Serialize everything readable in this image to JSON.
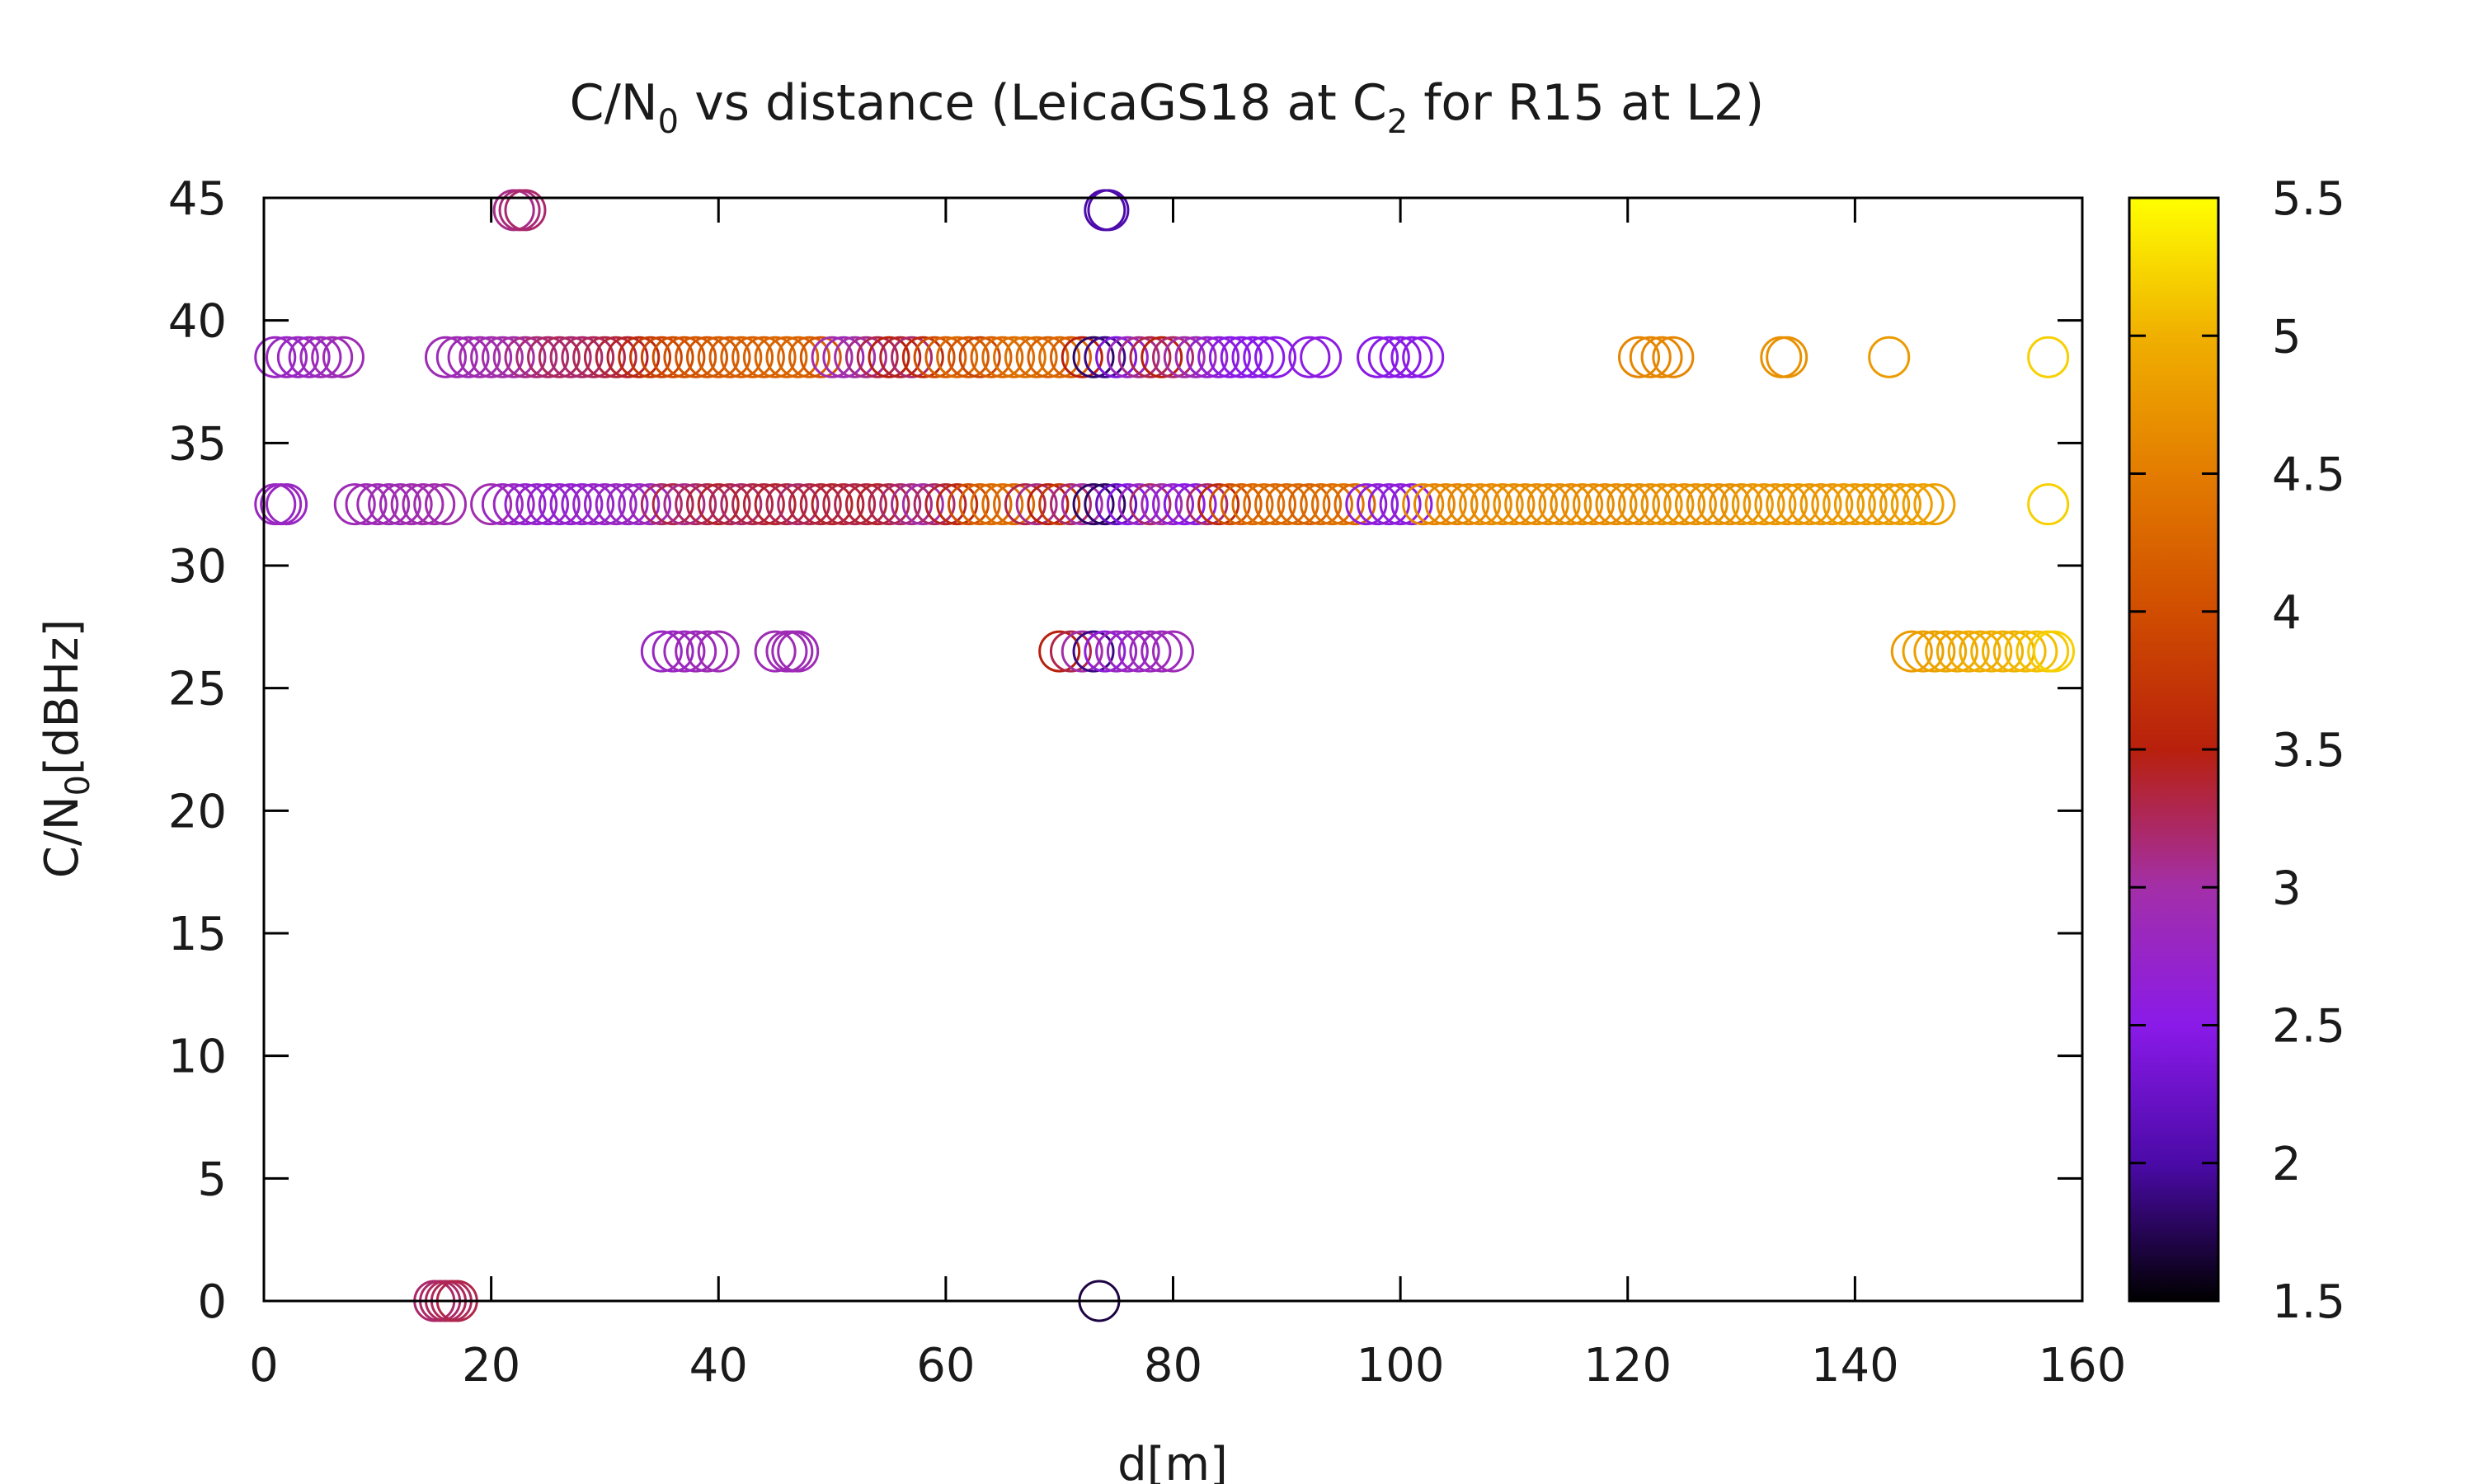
{
  "chart_data": {
    "type": "scatter",
    "title": {
      "pre": "C/N",
      "sub1": "0",
      "mid": " vs distance (LeicaGS18 at C",
      "sub2": "2",
      "post": " for R15 at L2)"
    },
    "xlabel": "d[m]",
    "ylabel": {
      "pre": "C/N",
      "sub": "0",
      "post": "[dBHz]"
    },
    "xlim": [
      0,
      160
    ],
    "ylim": [
      0,
      45
    ],
    "xticks": [
      "0",
      "20",
      "40",
      "60",
      "80",
      "100",
      "120",
      "140",
      "160"
    ],
    "yticks": [
      "0",
      "5",
      "10",
      "15",
      "20",
      "25",
      "30",
      "35",
      "40",
      "45"
    ],
    "colorbar": {
      "range": [
        1.5,
        5.5
      ],
      "ticks": [
        "1.5",
        "2",
        "2.5",
        "3",
        "3.5",
        "4",
        "4.5",
        "5",
        "5.5"
      ],
      "palette": [
        "#000000",
        "#4b0aa8",
        "#8a1ae8",
        "#a32fa8",
        "#b8200c",
        "#d04d00",
        "#e37c00",
        "#f0b000",
        "#ffff00"
      ]
    },
    "marker": "open-circle",
    "grid": false,
    "series": [
      {
        "y": 44.5,
        "points": [
          [
            22,
            3.1
          ],
          [
            22.5,
            3.15
          ],
          [
            23,
            3.2
          ],
          [
            74,
            2.0
          ],
          [
            74.3,
            2.05
          ]
        ]
      },
      {
        "y": 38.5,
        "points": [
          [
            1,
            2.8
          ],
          [
            2,
            2.8
          ],
          [
            3,
            2.8
          ],
          [
            4,
            2.8
          ],
          [
            5,
            2.85
          ],
          [
            6,
            2.9
          ],
          [
            7,
            2.9
          ],
          [
            16,
            2.9
          ],
          [
            17,
            2.9
          ],
          [
            18,
            2.9
          ],
          [
            19,
            2.95
          ],
          [
            20,
            2.95
          ],
          [
            21,
            3.0
          ],
          [
            22,
            3.0
          ],
          [
            23,
            3.1
          ],
          [
            24,
            3.15
          ],
          [
            25,
            3.2
          ],
          [
            26,
            3.25
          ],
          [
            27,
            3.2
          ],
          [
            28,
            3.2
          ],
          [
            29,
            3.25
          ],
          [
            30,
            3.3
          ],
          [
            31,
            3.35
          ],
          [
            32,
            3.4
          ],
          [
            33,
            3.6
          ],
          [
            34,
            3.8
          ],
          [
            35,
            3.9
          ],
          [
            36,
            4.0
          ],
          [
            37,
            4.05
          ],
          [
            38,
            4.1
          ],
          [
            39,
            4.1
          ],
          [
            40,
            4.15
          ],
          [
            41,
            4.15
          ],
          [
            42,
            4.2
          ],
          [
            43,
            4.2
          ],
          [
            44,
            4.2
          ],
          [
            45,
            4.25
          ],
          [
            46,
            4.25
          ],
          [
            47,
            4.25
          ],
          [
            48,
            4.2
          ],
          [
            49,
            4.1
          ],
          [
            50,
            3.0
          ],
          [
            51,
            2.9
          ],
          [
            52,
            3.0
          ],
          [
            53,
            3.1
          ],
          [
            54,
            3.3
          ],
          [
            55,
            3.5
          ],
          [
            56,
            3.4
          ],
          [
            57,
            3.2
          ],
          [
            58,
            3.6
          ],
          [
            59,
            4.0
          ],
          [
            60,
            4.2
          ],
          [
            61,
            4.3
          ],
          [
            62,
            4.1
          ],
          [
            63,
            3.9
          ],
          [
            64,
            4.2
          ],
          [
            65,
            4.3
          ],
          [
            66,
            4.35
          ],
          [
            67,
            4.4
          ],
          [
            68,
            4.3
          ],
          [
            69,
            4.2
          ],
          [
            70,
            4.3
          ],
          [
            71,
            4.2
          ],
          [
            72,
            3.5
          ],
          [
            73,
            1.8
          ],
          [
            74,
            1.9
          ],
          [
            75,
            2.4
          ],
          [
            76,
            2.8
          ],
          [
            77,
            3.1
          ],
          [
            78,
            3.3
          ],
          [
            79,
            3.5
          ],
          [
            80,
            3.2
          ],
          [
            81,
            3.0
          ],
          [
            82,
            2.9
          ],
          [
            83,
            2.7
          ],
          [
            84,
            2.6
          ],
          [
            85,
            2.5
          ],
          [
            86,
            2.5
          ],
          [
            87,
            2.5
          ],
          [
            88,
            2.5
          ],
          [
            89,
            2.5
          ],
          [
            92,
            2.55
          ],
          [
            93,
            2.55
          ],
          [
            98,
            2.5
          ],
          [
            99,
            2.5
          ],
          [
            100,
            2.5
          ],
          [
            101,
            2.5
          ],
          [
            102,
            2.5
          ],
          [
            121,
            4.6
          ],
          [
            122,
            4.6
          ],
          [
            123,
            4.6
          ],
          [
            124,
            4.6
          ],
          [
            133.5,
            4.7
          ],
          [
            134,
            4.7
          ],
          [
            143,
            4.8
          ],
          [
            157,
            5.2
          ]
        ]
      },
      {
        "y": 32.5,
        "points": [
          [
            1,
            2.8
          ],
          [
            1.5,
            2.8
          ],
          [
            2,
            2.8
          ],
          [
            8,
            2.9
          ],
          [
            9,
            2.9
          ],
          [
            10,
            2.9
          ],
          [
            11,
            2.9
          ],
          [
            12,
            2.9
          ],
          [
            13,
            2.95
          ],
          [
            14,
            2.95
          ],
          [
            15,
            2.95
          ],
          [
            16,
            2.95
          ],
          [
            20,
            2.95
          ],
          [
            21,
            2.8
          ],
          [
            22,
            2.8
          ],
          [
            23,
            2.7
          ],
          [
            24,
            2.7
          ],
          [
            25,
            2.7
          ],
          [
            26,
            2.7
          ],
          [
            27,
            2.7
          ],
          [
            28,
            2.7
          ],
          [
            29,
            2.75
          ],
          [
            30,
            2.75
          ],
          [
            31,
            2.8
          ],
          [
            32,
            2.8
          ],
          [
            33,
            2.8
          ],
          [
            34,
            2.85
          ],
          [
            35,
            3.2
          ],
          [
            36,
            3.3
          ],
          [
            37,
            3.1
          ],
          [
            38,
            3.2
          ],
          [
            39,
            3.3
          ],
          [
            40,
            3.4
          ],
          [
            41,
            3.3
          ],
          [
            42,
            3.2
          ],
          [
            43,
            3.3
          ],
          [
            44,
            3.35
          ],
          [
            45,
            3.4
          ],
          [
            46,
            3.3
          ],
          [
            47,
            3.2
          ],
          [
            48,
            3.3
          ],
          [
            49,
            3.35
          ],
          [
            50,
            3.4
          ],
          [
            51,
            3.35
          ],
          [
            52,
            3.3
          ],
          [
            53,
            3.35
          ],
          [
            54,
            3.4
          ],
          [
            55,
            3.3
          ],
          [
            56,
            3.2
          ],
          [
            57,
            3.1
          ],
          [
            58,
            3.0
          ],
          [
            59,
            3.2
          ],
          [
            60,
            3.4
          ],
          [
            61,
            3.6
          ],
          [
            62,
            4.0
          ],
          [
            63,
            4.2
          ],
          [
            64,
            4.3
          ],
          [
            65,
            4.35
          ],
          [
            66,
            4.3
          ],
          [
            67,
            3.3
          ],
          [
            68,
            3.1
          ],
          [
            69,
            3.5
          ],
          [
            70,
            3.8
          ],
          [
            71,
            3.2
          ],
          [
            72,
            3.0
          ],
          [
            73,
            1.8
          ],
          [
            74,
            1.8
          ],
          [
            75,
            2.2
          ],
          [
            76,
            2.5
          ],
          [
            77,
            2.8
          ],
          [
            78,
            3.2
          ],
          [
            79,
            3.0
          ],
          [
            80,
            2.7
          ],
          [
            81,
            2.5
          ],
          [
            82,
            2.6
          ],
          [
            83,
            3.2
          ],
          [
            84,
            3.6
          ],
          [
            85,
            4.0
          ],
          [
            86,
            4.2
          ],
          [
            87,
            4.3
          ],
          [
            88,
            4.35
          ],
          [
            89,
            4.3
          ],
          [
            90,
            4.3
          ],
          [
            91,
            4.3
          ],
          [
            92,
            4.2
          ],
          [
            93,
            4.3
          ],
          [
            94,
            4.35
          ],
          [
            95,
            4.4
          ],
          [
            96,
            4.3
          ],
          [
            97,
            2.6
          ],
          [
            98,
            2.6
          ],
          [
            99,
            2.6
          ],
          [
            100,
            2.6
          ],
          [
            101,
            2.6
          ],
          [
            102,
            4.6
          ],
          [
            103,
            4.6
          ],
          [
            104,
            4.6
          ],
          [
            105,
            4.6
          ],
          [
            106,
            4.6
          ],
          [
            107,
            4.65
          ],
          [
            108,
            4.65
          ],
          [
            109,
            4.65
          ],
          [
            110,
            4.65
          ],
          [
            111,
            4.65
          ],
          [
            112,
            4.65
          ],
          [
            113,
            4.65
          ],
          [
            114,
            4.65
          ],
          [
            115,
            4.65
          ],
          [
            116,
            4.65
          ],
          [
            117,
            4.65
          ],
          [
            118,
            4.65
          ],
          [
            119,
            4.65
          ],
          [
            120,
            4.65
          ],
          [
            121,
            4.65
          ],
          [
            122,
            4.7
          ],
          [
            123,
            4.7
          ],
          [
            124,
            4.7
          ],
          [
            125,
            4.7
          ],
          [
            126,
            4.7
          ],
          [
            127,
            4.7
          ],
          [
            128,
            4.7
          ],
          [
            129,
            4.7
          ],
          [
            130,
            4.7
          ],
          [
            131,
            4.75
          ],
          [
            132,
            4.75
          ],
          [
            133,
            4.75
          ],
          [
            134,
            4.75
          ],
          [
            135,
            4.75
          ],
          [
            136,
            4.75
          ],
          [
            137,
            4.75
          ],
          [
            138,
            4.75
          ],
          [
            139,
            4.8
          ],
          [
            140,
            4.8
          ],
          [
            141,
            4.8
          ],
          [
            142,
            4.8
          ],
          [
            143,
            4.8
          ],
          [
            144,
            4.8
          ],
          [
            145,
            4.85
          ],
          [
            146,
            4.85
          ],
          [
            147,
            4.85
          ],
          [
            157,
            5.2
          ]
        ]
      },
      {
        "y": 26.5,
        "points": [
          [
            35,
            2.8
          ],
          [
            36,
            2.8
          ],
          [
            37,
            2.85
          ],
          [
            38,
            2.85
          ],
          [
            39,
            2.9
          ],
          [
            40,
            2.9
          ],
          [
            45,
            2.9
          ],
          [
            46,
            2.9
          ],
          [
            46.5,
            2.9
          ],
          [
            47,
            2.9
          ],
          [
            70,
            3.5
          ],
          [
            71,
            3.3
          ],
          [
            72,
            3.0
          ],
          [
            73,
            1.9
          ],
          [
            74,
            2.6
          ],
          [
            75,
            2.8
          ],
          [
            76,
            2.8
          ],
          [
            77,
            2.8
          ],
          [
            78,
            2.85
          ],
          [
            79,
            2.85
          ],
          [
            80,
            2.9
          ],
          [
            145,
            4.8
          ],
          [
            146,
            4.85
          ],
          [
            147,
            4.85
          ],
          [
            148,
            4.9
          ],
          [
            149,
            4.9
          ],
          [
            150,
            4.95
          ],
          [
            151,
            4.95
          ],
          [
            152,
            5.0
          ],
          [
            153,
            5.0
          ],
          [
            154,
            5.0
          ],
          [
            155,
            5.05
          ],
          [
            156,
            5.1
          ],
          [
            157,
            5.15
          ],
          [
            157.5,
            5.2
          ]
        ]
      },
      {
        "y": 0,
        "points": [
          [
            15,
            3.2
          ],
          [
            15.5,
            3.2
          ],
          [
            16,
            3.25
          ],
          [
            16.5,
            3.25
          ],
          [
            17,
            3.3
          ],
          [
            73.5,
            1.7
          ]
        ]
      }
    ]
  }
}
